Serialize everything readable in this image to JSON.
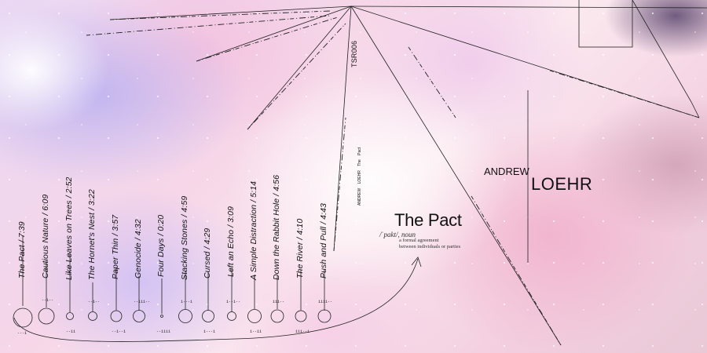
{
  "cover": {
    "title": "The Pact",
    "phonetic": "/ˈpakt/, noun",
    "definition_line1": "a formal agreement",
    "definition_line2": "between individuals or parties",
    "artist_first": "ANDREW",
    "artist_last": "LOEHR",
    "catalog": "TSR006",
    "spine_text": "ANDREW LOEHR   The Pact"
  },
  "tracks": [
    {
      "label": "The Pact / 7:39",
      "tick": "---i"
    },
    {
      "label": "Cautious Nature / 6:09",
      "tick": "--i--"
    },
    {
      "label": "Like Leaves on Trees / 2:52",
      "tick": "--ii"
    },
    {
      "label": "The Hornet's Nest / 3:22",
      "tick": "--i--"
    },
    {
      "label": "Paper Thin / 3:57",
      "tick": "--i--i"
    },
    {
      "label": "Genocide / 4:32",
      "tick": "--iii--"
    },
    {
      "label": "Four Days / 0:20",
      "tick": "--iiii"
    },
    {
      "label": "Stacking Stones / 4:59",
      "tick": "i---i"
    },
    {
      "label": "Cursed / 4:29",
      "tick": "i---i"
    },
    {
      "label": "Left an Echo / 3:09",
      "tick": "i--i--"
    },
    {
      "label": "A Simple Distraction / 5:14",
      "tick": "i--ii"
    },
    {
      "label": "Down the Rabbit Hole / 4:56",
      "tick": "iii--"
    },
    {
      "label": "The River / 4:10",
      "tick": "iii--i"
    },
    {
      "label": "Push and Pull / 4:43",
      "tick": "iiii--"
    }
  ],
  "colors": {
    "ink": "#111111"
  }
}
